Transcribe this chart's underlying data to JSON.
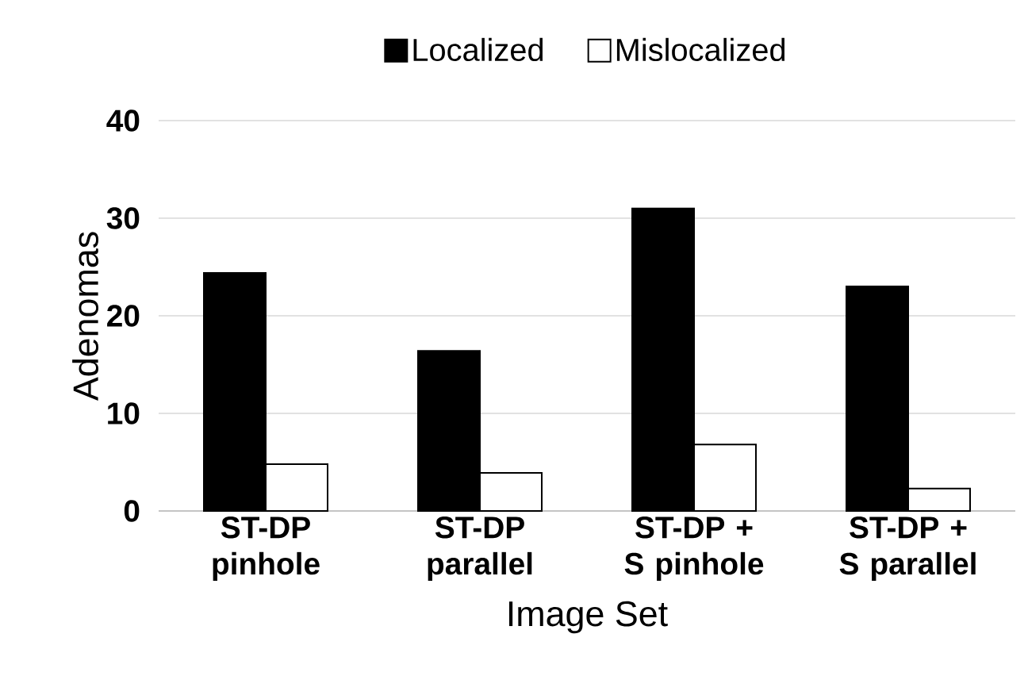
{
  "chart_data": {
    "type": "bar",
    "xlabel": "Image Set",
    "ylabel": "Adenomas",
    "categories": [
      "ST-DP pinhole",
      "ST-DP parallel",
      "ST-DP + S pinhole",
      "ST-DP + S parallel"
    ],
    "series": [
      {
        "name": "Localized",
        "color": "#000000",
        "values": [
          24.4,
          16.4,
          31,
          23
        ]
      },
      {
        "name": "Mislocalized",
        "color": "#ffffff",
        "values": [
          4.8,
          3.9,
          6.8,
          2.3
        ]
      }
    ],
    "ylim": [
      0,
      40
    ],
    "yticks": [
      0,
      10,
      20,
      30,
      40
    ],
    "grid": "y",
    "legend": "top"
  }
}
